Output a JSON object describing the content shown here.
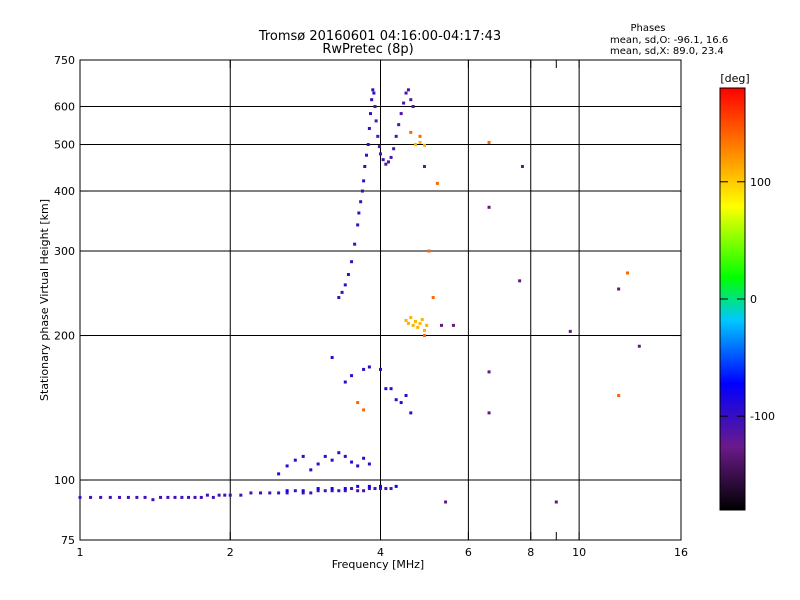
{
  "chart_data": {
    "type": "scatter",
    "title": "Tromsø 20160601 04:16:00-04:17:43",
    "subtitle": "RwPretec (8p)",
    "xlabel": "Frequency [MHz]",
    "ylabel": "Stationary phase Virtual Height [km]",
    "x_scale": "log",
    "y_scale": "log",
    "xlim": [
      1,
      16
    ],
    "ylim": [
      75,
      750
    ],
    "x_ticks": [
      1,
      2,
      4,
      6,
      8,
      9,
      10,
      16
    ],
    "x_tick_labels": [
      "1",
      "2",
      "4",
      "6",
      "8",
      "",
      "10",
      "16"
    ],
    "x_grid": [
      2,
      4,
      6,
      8,
      10
    ],
    "y_ticks": [
      75,
      100,
      200,
      300,
      400,
      500,
      600,
      750
    ],
    "y_tick_labels": [
      "75",
      "100",
      "200",
      "300",
      "400",
      "500",
      "600",
      "750"
    ],
    "y_grid": [
      100,
      200,
      300,
      400,
      500,
      600
    ],
    "phases_title": "Phases",
    "phases_lines": [
      "mean, sd,O: -96.1, 16.6",
      "mean, sd,X: 89.0, 23.4"
    ],
    "colorbar": {
      "label": "[deg]",
      "range": [
        -180,
        180
      ],
      "ticks": [
        100,
        0,
        -100
      ],
      "tick_labels": [
        "100",
        "0",
        "-100"
      ]
    },
    "series": [
      {
        "name": "ground-trace",
        "phase": -105,
        "points": [
          [
            1.0,
            92
          ],
          [
            1.05,
            92
          ],
          [
            1.1,
            92
          ],
          [
            1.15,
            92
          ],
          [
            1.2,
            92
          ],
          [
            1.25,
            92
          ],
          [
            1.3,
            92
          ],
          [
            1.35,
            92
          ],
          [
            1.4,
            91
          ],
          [
            1.45,
            92
          ],
          [
            1.5,
            92
          ],
          [
            1.55,
            92
          ],
          [
            1.6,
            92
          ],
          [
            1.65,
            92
          ],
          [
            1.7,
            92
          ],
          [
            1.75,
            92
          ],
          [
            1.8,
            93
          ],
          [
            1.85,
            92
          ],
          [
            1.9,
            93
          ],
          [
            1.95,
            93
          ],
          [
            2.0,
            93
          ],
          [
            2.1,
            93
          ],
          [
            2.2,
            94
          ],
          [
            2.3,
            94
          ],
          [
            2.4,
            94
          ],
          [
            2.5,
            94
          ],
          [
            2.6,
            94
          ],
          [
            2.7,
            95
          ],
          [
            2.8,
            94
          ],
          [
            2.9,
            94
          ],
          [
            3.0,
            95
          ],
          [
            3.1,
            95
          ],
          [
            3.2,
            95
          ],
          [
            3.3,
            95
          ],
          [
            3.4,
            95
          ],
          [
            3.5,
            96
          ],
          [
            3.6,
            95
          ],
          [
            3.7,
            95
          ],
          [
            3.8,
            96
          ],
          [
            3.9,
            96
          ],
          [
            4.0,
            96
          ],
          [
            4.1,
            96
          ],
          [
            4.2,
            96
          ]
        ]
      },
      {
        "name": "ground-trace-variant",
        "phase": -80,
        "points": [
          [
            2.6,
            95
          ],
          [
            2.8,
            95
          ],
          [
            3.0,
            96
          ],
          [
            3.2,
            96
          ],
          [
            3.4,
            96
          ],
          [
            3.6,
            97
          ],
          [
            3.8,
            97
          ],
          [
            4.0,
            97
          ],
          [
            4.3,
            97
          ]
        ]
      },
      {
        "name": "f-layer-o-lower",
        "phase": -100,
        "points": [
          [
            3.3,
            240
          ],
          [
            3.35,
            246
          ],
          [
            3.4,
            255
          ],
          [
            3.45,
            268
          ],
          [
            3.5,
            285
          ],
          [
            3.55,
            310
          ],
          [
            3.6,
            340
          ],
          [
            3.62,
            360
          ],
          [
            3.65,
            380
          ],
          [
            3.68,
            400
          ],
          [
            3.7,
            420
          ],
          [
            3.72,
            450
          ],
          [
            3.75,
            475
          ],
          [
            3.78,
            500
          ],
          [
            3.8,
            540
          ],
          [
            3.82,
            580
          ],
          [
            3.84,
            620
          ],
          [
            3.86,
            650
          ],
          [
            3.88,
            640
          ]
        ]
      },
      {
        "name": "f-layer-o-cusp",
        "phase": -110,
        "points": [
          [
            3.9,
            600
          ],
          [
            3.92,
            560
          ],
          [
            3.95,
            520
          ],
          [
            3.98,
            495
          ],
          [
            4.0,
            478
          ],
          [
            4.05,
            465
          ],
          [
            4.1,
            455
          ],
          [
            4.15,
            460
          ],
          [
            4.2,
            470
          ],
          [
            4.25,
            490
          ],
          [
            4.3,
            520
          ],
          [
            4.35,
            550
          ],
          [
            4.4,
            580
          ],
          [
            4.45,
            610
          ],
          [
            4.5,
            640
          ],
          [
            4.55,
            650
          ],
          [
            4.6,
            620
          ],
          [
            4.65,
            600
          ]
        ]
      },
      {
        "name": "f-layer-x",
        "phase": 110,
        "points": [
          [
            4.5,
            215
          ],
          [
            4.55,
            212
          ],
          [
            4.6,
            218
          ],
          [
            4.65,
            210
          ],
          [
            4.7,
            214
          ],
          [
            4.75,
            208
          ],
          [
            4.8,
            212
          ],
          [
            4.85,
            216
          ],
          [
            4.9,
            205
          ],
          [
            4.95,
            210
          ],
          [
            4.7,
            500
          ],
          [
            4.8,
            505
          ],
          [
            4.9,
            498
          ]
        ]
      },
      {
        "name": "e-layer-echoes",
        "phase": -95,
        "points": [
          [
            2.5,
            103
          ],
          [
            2.6,
            107
          ],
          [
            2.7,
            110
          ],
          [
            2.8,
            112
          ],
          [
            2.9,
            105
          ],
          [
            3.0,
            108
          ],
          [
            3.1,
            112
          ],
          [
            3.2,
            110
          ],
          [
            3.3,
            114
          ],
          [
            3.4,
            112
          ],
          [
            3.5,
            109
          ],
          [
            3.6,
            107
          ],
          [
            3.7,
            111
          ],
          [
            3.4,
            160
          ],
          [
            3.5,
            165
          ],
          [
            3.7,
            170
          ],
          [
            3.8,
            172
          ],
          [
            4.0,
            170
          ],
          [
            4.1,
            155
          ],
          [
            4.2,
            155
          ],
          [
            4.3,
            147
          ],
          [
            4.4,
            145
          ],
          [
            4.5,
            150
          ],
          [
            4.6,
            138
          ],
          [
            3.8,
            108
          ],
          [
            3.2,
            180
          ]
        ]
      },
      {
        "name": "sparse-points",
        "phase": -130,
        "points": [
          [
            6.6,
            370
          ],
          [
            7.6,
            260
          ],
          [
            9.6,
            204
          ],
          [
            13.2,
            190
          ],
          [
            12.0,
            250
          ],
          [
            5.3,
            210
          ],
          [
            5.6,
            210
          ],
          [
            4.9,
            450
          ],
          [
            7.7,
            450
          ],
          [
            5.4,
            90
          ],
          [
            9.0,
            90
          ],
          [
            6.6,
            168
          ],
          [
            6.6,
            138
          ]
        ]
      },
      {
        "name": "scattered-positive",
        "phase": 140,
        "points": [
          [
            5.2,
            415
          ],
          [
            5.0,
            300
          ],
          [
            5.1,
            240
          ],
          [
            4.9,
            200
          ],
          [
            4.6,
            530
          ],
          [
            4.8,
            520
          ],
          [
            3.6,
            145
          ],
          [
            3.7,
            140
          ],
          [
            6.6,
            505
          ],
          [
            12.5,
            270
          ],
          [
            12.0,
            150
          ]
        ]
      }
    ]
  }
}
